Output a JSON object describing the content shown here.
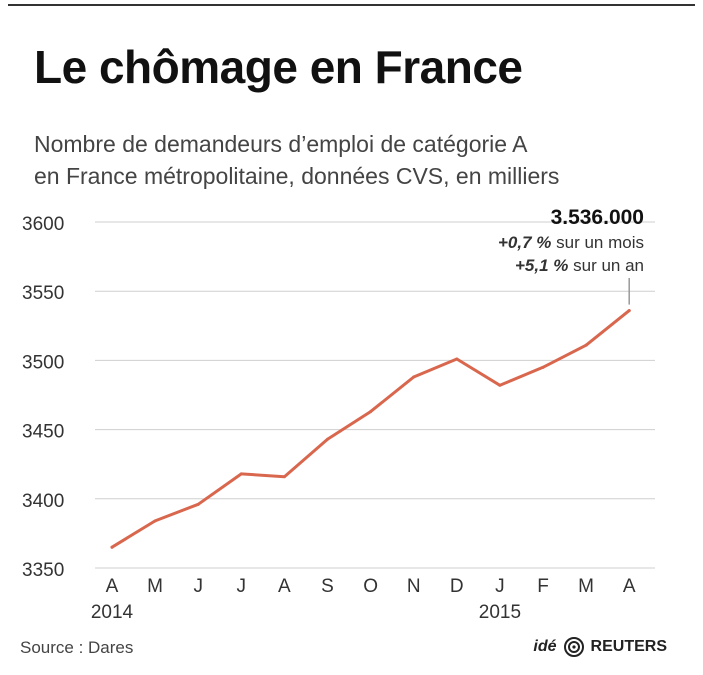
{
  "title": "Le chômage en France",
  "subtitle": {
    "line1": "Nombre de demandeurs d’emploi de catégorie A",
    "line2": "en France métropolitaine, données CVS, en milliers"
  },
  "source": "Source : Dares",
  "credit": {
    "ide": "idé",
    "reuters": "REUTERS",
    "logo_icon": "reuters-logo-icon"
  },
  "colors": {
    "line": "#d9674e",
    "grid": "#cfcfcf",
    "text": "#333333"
  },
  "annotation": {
    "value": "3.536.000",
    "month_change": "+0,7 %",
    "month_suffix": " sur un mois",
    "year_change": "+5,1 %",
    "year_suffix": " sur un an"
  },
  "chart_data": {
    "type": "line",
    "title": "Le chômage en France",
    "xlabel": "",
    "ylabel": "",
    "categories": [
      "A",
      "M",
      "J",
      "J",
      "A",
      "S",
      "O",
      "N",
      "D",
      "J",
      "F",
      "M",
      "A"
    ],
    "year_labels": [
      {
        "index": 0,
        "label": "2014"
      },
      {
        "index": 9,
        "label": "2015"
      }
    ],
    "series": [
      {
        "values": [
          3365,
          3384,
          3396,
          3418,
          3416,
          3443,
          3463,
          3488,
          3501,
          3482,
          3495,
          3511,
          3536
        ]
      }
    ],
    "ylim": [
      3350,
      3600
    ],
    "yticks": [
      3350,
      3400,
      3450,
      3500,
      3550,
      3600
    ],
    "grid": true
  }
}
